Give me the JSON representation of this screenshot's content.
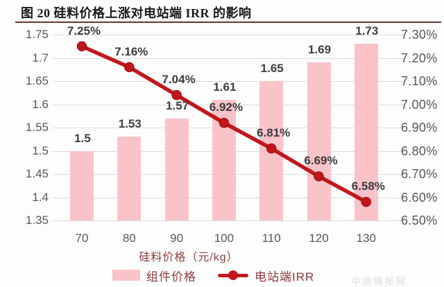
{
  "title": "图 20 硅料价格上涨对电站端 IRR 的影响",
  "colors": {
    "bar_fill": "#f9c3c9",
    "line_red": "#c3161b",
    "marker_ring": "#a31013",
    "gridline": "#dcdcdf",
    "axis_text": "#57575d",
    "data_label_text": "#3b3b3b",
    "red_label_text": "#8c3b3b",
    "title_rule": "#6e3434"
  },
  "chart_data": {
    "type": "bar+line combo",
    "title": "图 20 硅料价格上涨对电站端 IRR 的影响",
    "categories": [
      "70",
      "80",
      "90",
      "100",
      "110",
      "120",
      "130"
    ],
    "xlabel": "硅料价格（元/kg）",
    "series": [
      {
        "name": "组件价格",
        "type": "bar",
        "axis": "left",
        "values": [
          1.5,
          1.53,
          1.57,
          1.61,
          1.65,
          1.69,
          1.73
        ],
        "labels": [
          "1.5",
          "1.53",
          "1.57",
          "1.61",
          "1.65",
          "1.69",
          "1.73"
        ]
      },
      {
        "name": "电站端IRR",
        "type": "line",
        "axis": "right",
        "values": [
          7.25,
          7.16,
          7.04,
          6.92,
          6.81,
          6.69,
          6.58
        ],
        "labels": [
          "7.25%",
          "7.16%",
          "7.04%",
          "6.92%",
          "6.81%",
          "6.69%",
          "6.58%"
        ]
      }
    ],
    "left_axis": {
      "min": 1.35,
      "max": 1.75,
      "step": 0.05,
      "ticks": [
        "1.75",
        "1.7",
        "1.65",
        "1.6",
        "1.55",
        "1.5",
        "1.45",
        "1.4",
        "1.35"
      ]
    },
    "right_axis": {
      "min": 6.5,
      "max": 7.3,
      "step": 0.1,
      "ticks": [
        "7.30%",
        "7.20%",
        "7.10%",
        "7.00%",
        "6.90%",
        "6.80%",
        "6.70%",
        "6.60%",
        "6.50%"
      ]
    },
    "grid": true,
    "legend_position": "bottom",
    "legend": [
      "组件价格",
      "电站端IRR"
    ]
  },
  "watermark": "中商情报网"
}
